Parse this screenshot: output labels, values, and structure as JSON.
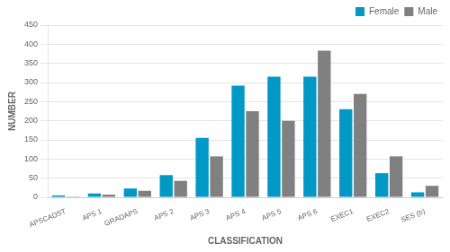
{
  "chart_data": {
    "type": "bar",
    "categories": [
      "APSCADST",
      "APS 1",
      "GRADAPS",
      "APS 2",
      "APS 3",
      "APS 4",
      "APS 5",
      "APS 6",
      "EXEC1",
      "EXEC2",
      "SES (b)"
    ],
    "series": [
      {
        "name": "Female",
        "color": "#0099c6",
        "values": [
          5,
          10,
          23,
          58,
          155,
          292,
          315,
          315,
          230,
          63,
          13
        ]
      },
      {
        "name": "Male",
        "color": "#808080",
        "values": [
          2,
          7,
          17,
          43,
          107,
          225,
          200,
          383,
          270,
          107,
          30
        ]
      }
    ],
    "xlabel": "CLASSIFICATION",
    "ylabel": "NUMBER",
    "ylim": [
      0,
      450
    ],
    "yticks": [
      0,
      50,
      100,
      150,
      200,
      250,
      300,
      350,
      400,
      450
    ],
    "grid": true,
    "legend": "upper right"
  }
}
